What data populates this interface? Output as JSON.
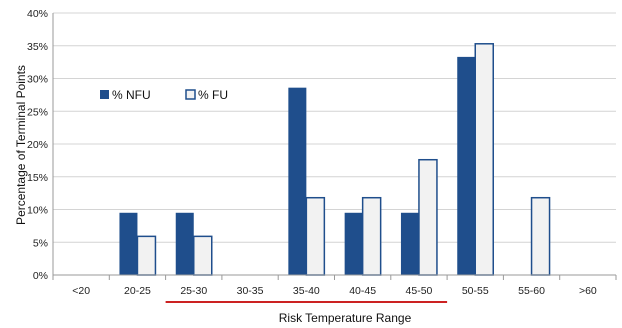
{
  "chart_data": {
    "type": "bar",
    "categories": [
      "<20",
      "20-25",
      "25-30",
      "30-35",
      "35-40",
      "40-45",
      "45-50",
      "50-55",
      "55-60",
      ">60"
    ],
    "series": [
      {
        "name": "% NFU",
        "values": [
          0,
          9.5,
          9.5,
          0,
          28.6,
          9.5,
          9.5,
          33.3,
          0,
          0
        ],
        "color": "#1f4e8c",
        "style": "solid"
      },
      {
        "name": "% FU",
        "values": [
          0,
          5.9,
          5.9,
          0,
          11.8,
          11.8,
          17.6,
          35.3,
          11.8,
          0
        ],
        "color": "#f2f2f2",
        "border": "#1f4e8c",
        "style": "outlined"
      }
    ],
    "xlabel": "Risk Temperature Range",
    "ylabel": "Percentage of Terminal Points",
    "ylim": [
      0,
      40
    ],
    "yticks": [
      "0%",
      "5%",
      "10%",
      "15%",
      "20%",
      "25%",
      "30%",
      "35%",
      "40%"
    ],
    "grid": true,
    "legend": "upper-left",
    "highlight_range": [
      "25-30",
      "45-50"
    ],
    "highlight_color": "#cc2222"
  }
}
